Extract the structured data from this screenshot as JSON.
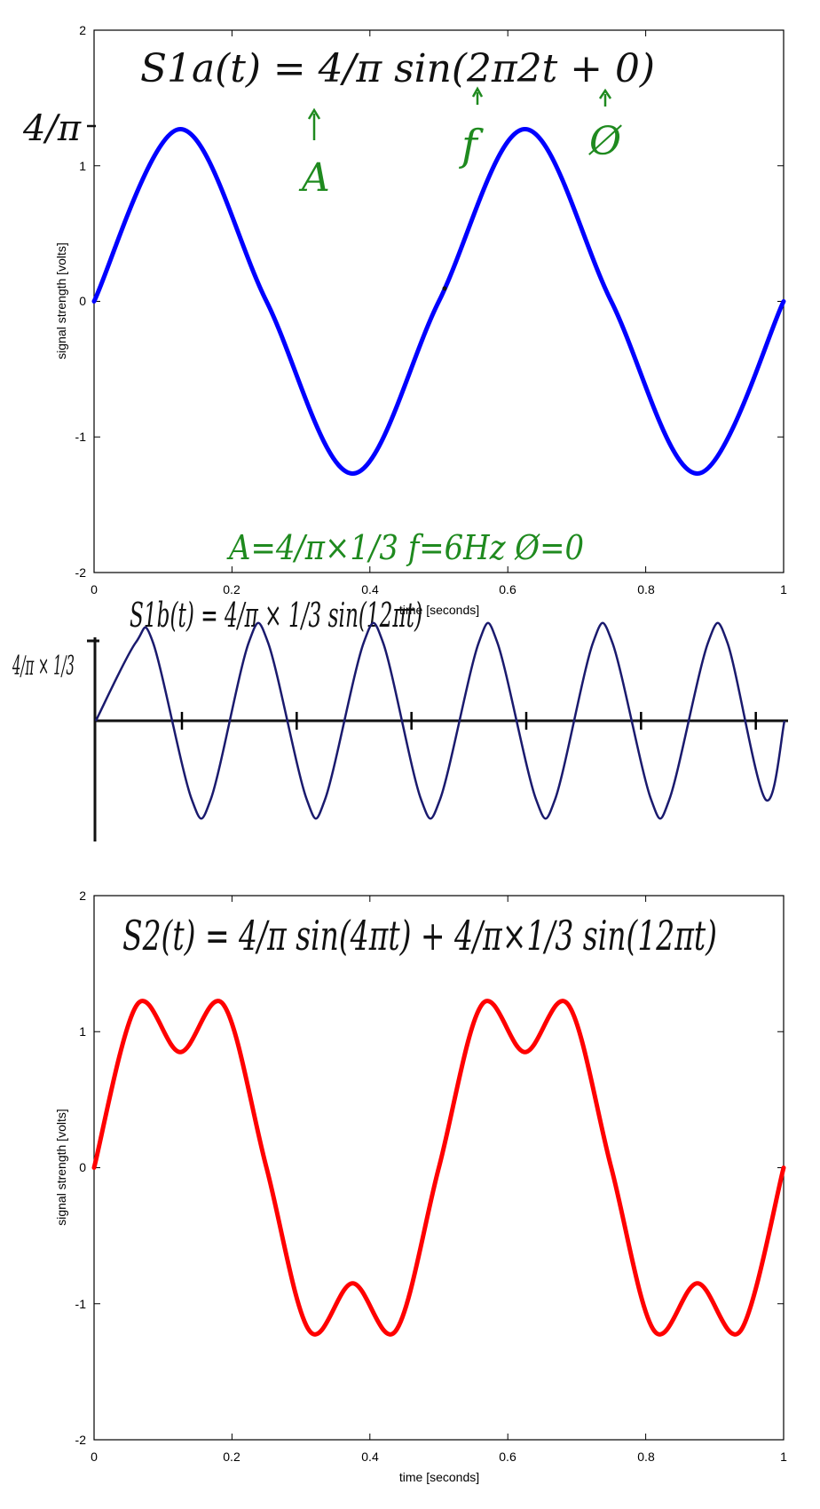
{
  "chart_data": [
    {
      "type": "line",
      "xlabel": "time [seconds]",
      "ylabel": "signal strength [volts]",
      "xlim": [
        0,
        1
      ],
      "ylim": [
        -2,
        2
      ],
      "xticks": [
        "0",
        "0.2",
        "0.4",
        "0.6",
        "0.8",
        "1"
      ],
      "yticks": [
        "2",
        "1",
        "0",
        "-1",
        "-2"
      ],
      "grid": false,
      "series": [
        {
          "color": "#0000ff",
          "x": [
            0,
            0.125,
            0.25,
            0.375,
            0.5,
            0.625,
            0.75,
            0.875,
            1
          ],
          "y": [
            0,
            1.27,
            0,
            -1.27,
            0,
            1.27,
            0,
            -1.27,
            0
          ]
        }
      ],
      "annotations": {
        "equation": "S1a(t) = 4/π sin(2π2t + 0)",
        "amp_marker": "4/π",
        "label_A": "A",
        "label_f": "f",
        "label_phi": "Ø",
        "params": "A=4/π×1/3    f=6Hz    Ø=0"
      }
    },
    {
      "type": "line",
      "hand_drawn": true,
      "series": [
        {
          "color": "#1a1a6e",
          "x": [
            0,
            0.058,
            0.083,
            0.139,
            0.167,
            0.222,
            0.25,
            0.306,
            0.333,
            0.389,
            0.417,
            0.472,
            0.5,
            0.556,
            0.583,
            0.639,
            0.667,
            0.722,
            0.75,
            0.806,
            0.833,
            0.889,
            0.917,
            0.972,
            1
          ],
          "y": [
            0,
            0.42,
            0.42,
            -0.42,
            -0.42,
            0.42,
            0.42,
            -0.42,
            -0.42,
            0.42,
            0.42,
            -0.42,
            -0.42,
            0.42,
            0.42,
            -0.42,
            -0.42,
            0.42,
            0.42,
            -0.42,
            -0.42,
            0.42,
            0.42,
            -0.42,
            0
          ]
        }
      ],
      "annotations": {
        "equation": "S1b(t) = 4/π × 1/3 sin(12πt)",
        "amp_marker": "4/π × 1/3"
      }
    },
    {
      "type": "line",
      "xlabel": "time [seconds]",
      "ylabel": "signal strength [volts]",
      "xlim": [
        0,
        1
      ],
      "ylim": [
        -2,
        2
      ],
      "xticks": [
        "0",
        "0.2",
        "0.4",
        "0.6",
        "0.8",
        "1"
      ],
      "yticks": [
        "2",
        "1",
        "0",
        "-1",
        "-2"
      ],
      "grid": false,
      "series": [
        {
          "color": "#ff0000",
          "x": [
            0,
            0.0625,
            0.125,
            0.1875,
            0.25,
            0.3125,
            0.375,
            0.4375,
            0.5,
            0.5625,
            0.625,
            0.6875,
            0.75,
            0.8125,
            0.875,
            0.9375,
            1
          ],
          "y": [
            0,
            1.2,
            0.85,
            1.2,
            0,
            -1.2,
            -0.85,
            -1.2,
            0,
            1.2,
            0.85,
            1.2,
            0,
            -1.2,
            -0.85,
            -1.2,
            0
          ]
        }
      ],
      "annotations": {
        "equation": "S2(t) = 4/π sin(4πt) + 4/π×1/3 sin(12πt)"
      }
    }
  ]
}
